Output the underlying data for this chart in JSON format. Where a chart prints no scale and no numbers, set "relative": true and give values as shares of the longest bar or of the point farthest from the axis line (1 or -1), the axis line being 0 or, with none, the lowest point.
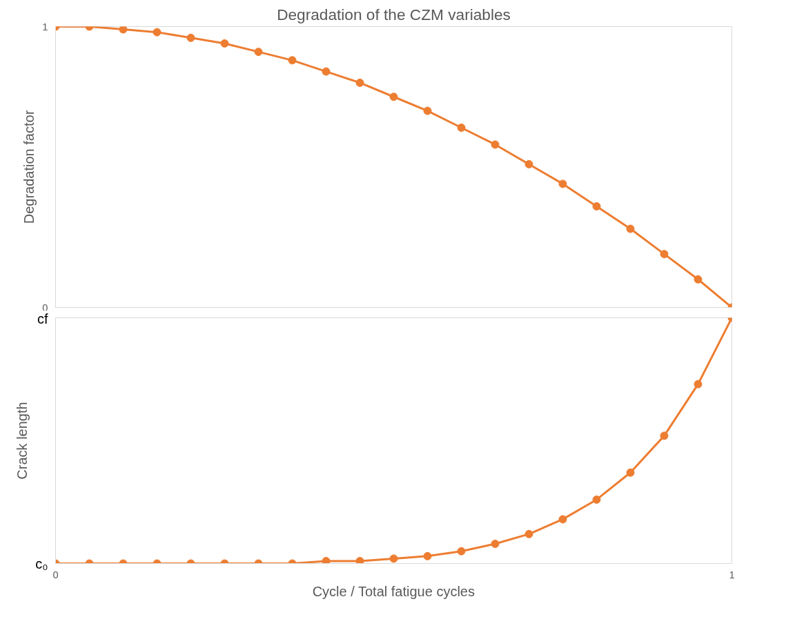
{
  "chart_data": [
    {
      "type": "line",
      "title": "Degradation of the CZM variables",
      "ylabel": "Degradation factor",
      "xlim": [
        0,
        1
      ],
      "ylim": [
        0,
        1
      ],
      "yticks": [
        0,
        1
      ],
      "tick_labels": "y",
      "marker": "circle",
      "line_style": "solid",
      "x": [
        0,
        0.05,
        0.1,
        0.15,
        0.2,
        0.25,
        0.3,
        0.35,
        0.4,
        0.45,
        0.5,
        0.55,
        0.6,
        0.65,
        0.7,
        0.75,
        0.8,
        0.85,
        0.9,
        0.95,
        1
      ],
      "series": [
        {
          "color": "#ed7d31",
          "values": [
            1,
            1,
            0.99,
            0.98,
            0.96,
            0.94,
            0.91,
            0.88,
            0.84,
            0.8,
            0.75,
            0.7,
            0.64,
            0.58,
            0.51,
            0.44,
            0.36,
            0.28,
            0.19,
            0.1,
            0
          ]
        }
      ]
    },
    {
      "type": "line",
      "xlabel": "Cycle / Total fatigue cycles",
      "ylabel": "Crack length",
      "xlim": [
        0,
        1
      ],
      "xticks": [
        0,
        1
      ],
      "relative": true,
      "annotations": [
        "c₀",
        "cf"
      ],
      "marker": "circle",
      "line_style": "solid",
      "x": [
        0,
        0.05,
        0.1,
        0.15,
        0.2,
        0.25,
        0.3,
        0.35,
        0.4,
        0.45,
        0.5,
        0.55,
        0.6,
        0.65,
        0.7,
        0.75,
        0.8,
        0.85,
        0.9,
        0.95,
        1
      ],
      "series": [
        {
          "color": "#ed7d31",
          "values": [
            0,
            0,
            0,
            0,
            0,
            0,
            0,
            0,
            0.01,
            0.01,
            0.02,
            0.03,
            0.05,
            0.08,
            0.12,
            0.18,
            0.26,
            0.37,
            0.52,
            0.73,
            1
          ]
        }
      ]
    }
  ]
}
